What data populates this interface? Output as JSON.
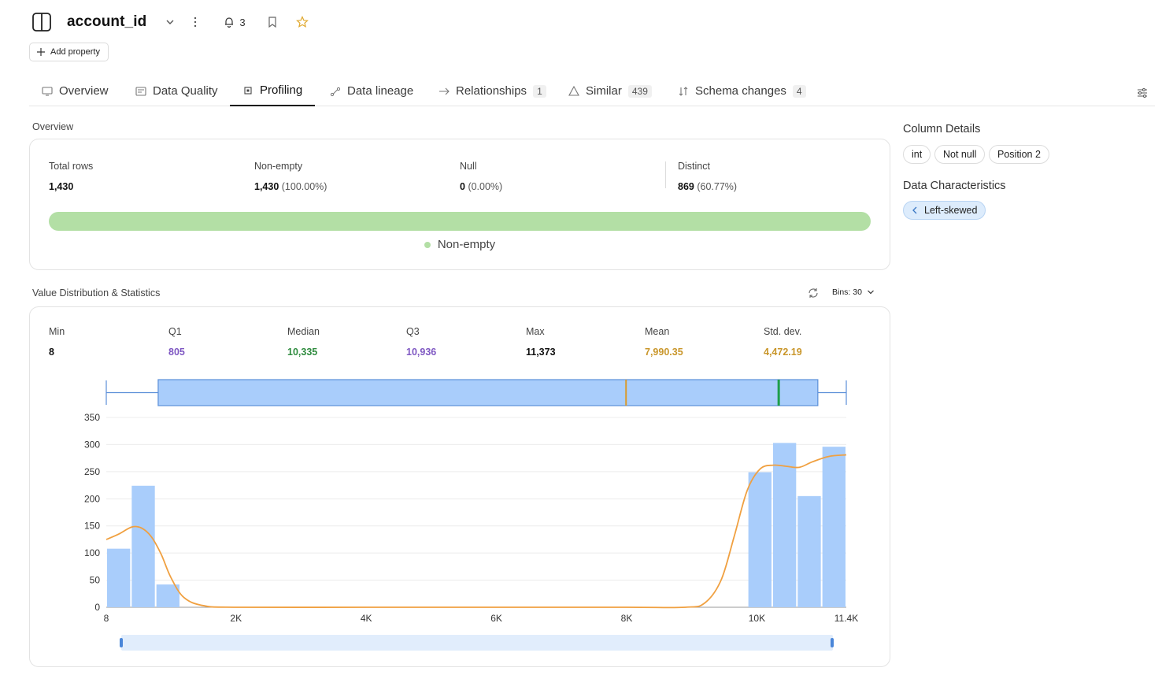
{
  "header": {
    "title": "account_id",
    "notifications_count": "3",
    "add_property_label": "Add property"
  },
  "tabs": [
    {
      "label": "Overview",
      "icon": "monitor-icon"
    },
    {
      "label": "Data Quality",
      "icon": "quality-icon"
    },
    {
      "label": "Profiling",
      "icon": "profiling-icon",
      "active": true
    },
    {
      "label": "Data lineage",
      "icon": "lineage-icon"
    },
    {
      "label": "Relationships",
      "icon": "relationships-icon",
      "badge": "1"
    },
    {
      "label": "Similar",
      "icon": "similar-icon",
      "badge": "439"
    },
    {
      "label": "Schema changes",
      "icon": "schema-icon",
      "badge": "4"
    }
  ],
  "overview": {
    "section_label": "Overview",
    "stats": [
      {
        "label": "Total rows",
        "value": "1,430",
        "pct": ""
      },
      {
        "label": "Non-empty",
        "value": "1,430",
        "pct": "(100.00%)"
      },
      {
        "label": "Null",
        "value": "0",
        "pct": "(0.00%)"
      },
      {
        "label": "Distinct",
        "value": "869",
        "pct": "(60.77%)"
      }
    ],
    "legend_label": "Non-empty",
    "non_empty_fraction": 1.0,
    "colors": {
      "non_empty": "#b3dfa5"
    }
  },
  "column_details": {
    "title": "Column Details",
    "chips": [
      "int",
      "Not null",
      "Position 2"
    ]
  },
  "data_characteristics": {
    "title": "Data Characteristics",
    "chip": "Left-skewed"
  },
  "distribution": {
    "section_label": "Value Distribution & Statistics",
    "bins_label": "Bins: 30",
    "stats": [
      {
        "label": "Min",
        "value": "8",
        "color": "#111111"
      },
      {
        "label": "Q1",
        "value": "805",
        "color": "#7e57c2"
      },
      {
        "label": "Median",
        "value": "10,335",
        "color": "#2e8b3e"
      },
      {
        "label": "Q3",
        "value": "10,936",
        "color": "#7e57c2"
      },
      {
        "label": "Max",
        "value": "11,373",
        "color": "#111111"
      },
      {
        "label": "Mean",
        "value": "7,990.35",
        "color": "#c9962a"
      },
      {
        "label": "Std. dev.",
        "value": "4,472.19",
        "color": "#c9962a"
      }
    ]
  },
  "chart_data": {
    "type": "bar",
    "title": "",
    "xlabel": "",
    "ylabel": "",
    "x_ticks": [
      "8",
      "2K",
      "4K",
      "6K",
      "8K",
      "10K",
      "11.4K"
    ],
    "x_tick_values": [
      8,
      2000,
      4000,
      6000,
      8000,
      10000,
      11373
    ],
    "y_ticks": [
      0,
      50,
      100,
      150,
      200,
      250,
      300,
      350
    ],
    "xlim": [
      8,
      11373
    ],
    "ylim": [
      0,
      350
    ],
    "grid": true,
    "bar_color": "#a9cdfb",
    "kde_color": "#f0a040",
    "bins": [
      {
        "x0": 8,
        "x1": 387,
        "count": 108
      },
      {
        "x0": 387,
        "x1": 766,
        "count": 224
      },
      {
        "x0": 766,
        "x1": 1144,
        "count": 42
      },
      {
        "x0": 9857,
        "x1": 10236,
        "count": 249
      },
      {
        "x0": 10236,
        "x1": 10615,
        "count": 303
      },
      {
        "x0": 10615,
        "x1": 10994,
        "count": 205
      },
      {
        "x0": 10994,
        "x1": 11373,
        "count": 296
      }
    ],
    "kde": [
      [
        8,
        125
      ],
      [
        200,
        135
      ],
      [
        400,
        148
      ],
      [
        550,
        146
      ],
      [
        700,
        130
      ],
      [
        850,
        98
      ],
      [
        1000,
        55
      ],
      [
        1200,
        18
      ],
      [
        1500,
        3
      ],
      [
        2000,
        0
      ],
      [
        4000,
        0
      ],
      [
        6000,
        0
      ],
      [
        8000,
        0
      ],
      [
        8900,
        0
      ],
      [
        9200,
        8
      ],
      [
        9450,
        50
      ],
      [
        9650,
        130
      ],
      [
        9850,
        215
      ],
      [
        10050,
        255
      ],
      [
        10250,
        262
      ],
      [
        10450,
        260
      ],
      [
        10650,
        258
      ],
      [
        10850,
        268
      ],
      [
        11100,
        278
      ],
      [
        11373,
        281
      ]
    ],
    "boxplot": {
      "min": 8,
      "q1": 805,
      "median": 10335,
      "q3": 10936,
      "max": 11373,
      "mean": 7990.35,
      "box_color": "#a9cdfb",
      "median_color": "#1e9e4a",
      "mean_color": "#d99a2e"
    }
  }
}
